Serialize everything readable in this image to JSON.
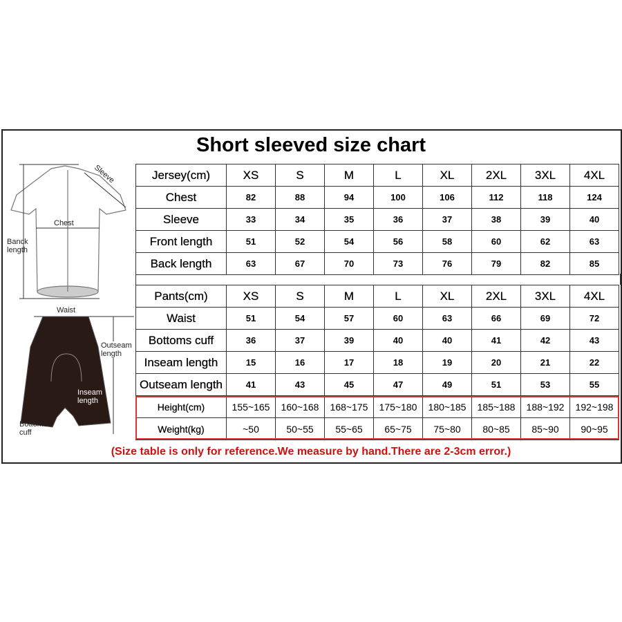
{
  "title": "Short sleeved size chart",
  "sizes": [
    "XS",
    "S",
    "M",
    "L",
    "XL",
    "2XL",
    "3XL",
    "4XL"
  ],
  "jersey": {
    "header": "Jersey(cm)",
    "rows": [
      {
        "label": "Chest",
        "values": [
          "82",
          "88",
          "94",
          "100",
          "106",
          "112",
          "118",
          "124"
        ]
      },
      {
        "label": "Sleeve",
        "values": [
          "33",
          "34",
          "35",
          "36",
          "37",
          "38",
          "39",
          "40"
        ]
      },
      {
        "label": "Front length",
        "values": [
          "51",
          "52",
          "54",
          "56",
          "58",
          "60",
          "62",
          "63"
        ]
      },
      {
        "label": "Back length",
        "values": [
          "63",
          "67",
          "70",
          "73",
          "76",
          "79",
          "82",
          "85"
        ]
      }
    ]
  },
  "pants": {
    "header": "Pants(cm)",
    "rows": [
      {
        "label": "Waist",
        "values": [
          "51",
          "54",
          "57",
          "60",
          "63",
          "66",
          "69",
          "72"
        ]
      },
      {
        "label": "Bottoms cuff",
        "values": [
          "36",
          "37",
          "39",
          "40",
          "40",
          "41",
          "42",
          "43"
        ]
      },
      {
        "label": "Inseam length",
        "values": [
          "15",
          "16",
          "17",
          "18",
          "19",
          "20",
          "21",
          "22"
        ]
      },
      {
        "label": "Outseam length",
        "values": [
          "41",
          "43",
          "45",
          "47",
          "49",
          "51",
          "53",
          "55"
        ]
      },
      {
        "label": "Height(cm)",
        "values": [
          "155~165",
          "160~168",
          "168~175",
          "175~180",
          "180~185",
          "185~188",
          "188~192",
          "192~198"
        ]
      },
      {
        "label": "Weight(kg)",
        "values": [
          "~50",
          "50~55",
          "55~65",
          "65~75",
          "75~80",
          "80~85",
          "85~90",
          "90~95"
        ]
      }
    ]
  },
  "diagram_labels": {
    "sleeve": "Sleeve",
    "chest": "Chest",
    "back_length": "Banck length",
    "waist": "Waist",
    "outseam": "Outseam length",
    "inseam": "Inseam length",
    "bottoms_cuff": "Bottoms cuff"
  },
  "note": "(Size table is only for reference.We measure by hand.There are 2-3cm error.)",
  "colors": {
    "highlight_border": "#dd3333",
    "note_text": "#d01010",
    "shorts": "#2a1a16"
  }
}
